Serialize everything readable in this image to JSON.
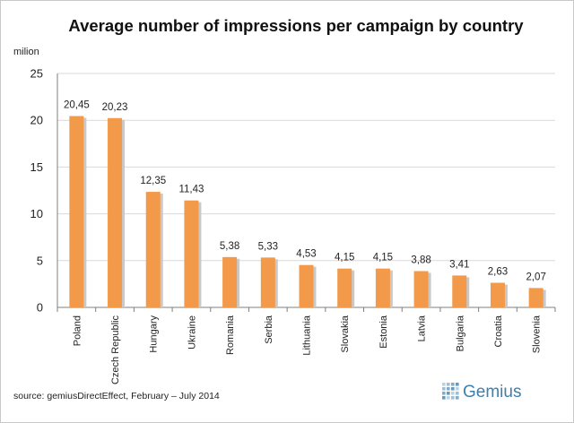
{
  "chart_data": {
    "type": "bar",
    "title": "Average number of impressions per campaign by country",
    "unit_label": "milion",
    "categories": [
      "Poland",
      "Czech Republic",
      "Hungary",
      "Ukraine",
      "Romania",
      "Serbia",
      "Lithuania",
      "Slovakia",
      "Estonia",
      "Latvia",
      "Bulgaria",
      "Croatia",
      "Slovenia"
    ],
    "values": [
      20.45,
      20.23,
      12.35,
      11.43,
      5.38,
      5.33,
      4.53,
      4.15,
      4.15,
      3.88,
      3.41,
      2.63,
      2.07
    ],
    "value_labels": [
      "20,45",
      "20,23",
      "12,35",
      "11,43",
      "5,38",
      "5,33",
      "4,53",
      "4,15",
      "4,15",
      "3,88",
      "3,41",
      "2,63",
      "2,07"
    ],
    "yticks": [
      "0",
      "5",
      "10",
      "15",
      "20",
      "25"
    ],
    "ylim": [
      0,
      25
    ],
    "grid": true,
    "legend": "none",
    "bar_color": "#f39a4a",
    "bar_shadow_color": "#c9c9c9",
    "grid_color": "#d9d9d9"
  },
  "footer": {
    "source": "source: gemiusDirectEffect, February – July 2014",
    "logo_text": "Gemius"
  },
  "logo_color": "#3f7fae"
}
